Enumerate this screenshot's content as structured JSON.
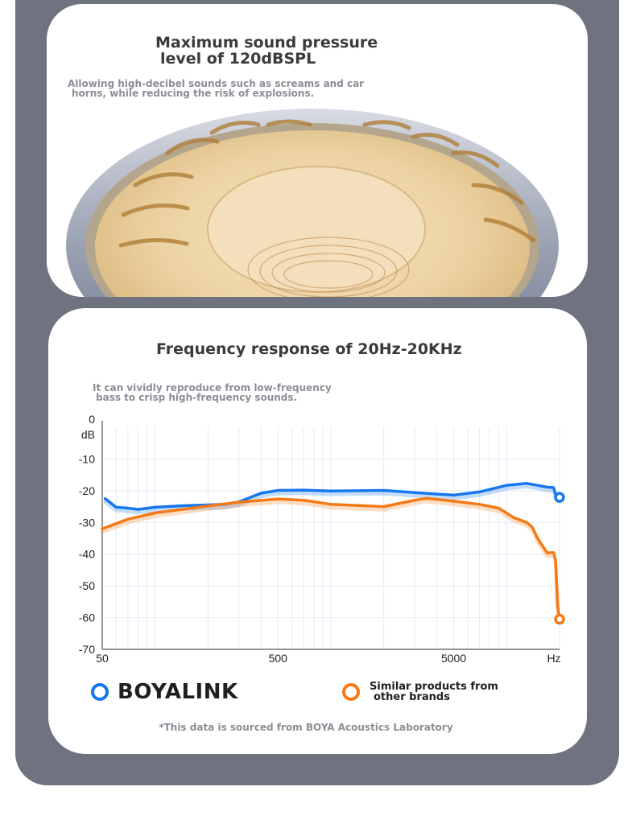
{
  "panel1": {
    "title_line1": "Maximum sound pressure",
    "title_line2": "level of 120dBSPL",
    "subtitle_line1": "Allowing high-decibel sounds such as screams and car",
    "subtitle_line2": "horns, while reducing the risk of explosions."
  },
  "panel2": {
    "title": "Frequency response of 20Hz-20KHz",
    "subtitle_line1": "It can vividly reproduce from low-frequency",
    "subtitle_line2": "bass to crisp high-frequency sounds.",
    "footnote": "*This data is sourced from BOYA Acoustics Laboratory"
  },
  "colors": {
    "frame": "#6f737f",
    "boyalink": "#1677ee",
    "other": "#f47a16"
  },
  "chart_data": {
    "type": "line",
    "title": "",
    "xlabel": "Hz",
    "ylabel": "dB",
    "x_scale": "log",
    "xlim": [
      50,
      20000
    ],
    "ylim": [
      -70,
      0
    ],
    "x_ticks": [
      {
        "value": 50,
        "label": "50"
      },
      {
        "value": 500,
        "label": "500"
      },
      {
        "value": 5000,
        "label": "5000"
      }
    ],
    "y_ticks": [
      {
        "value": 0,
        "label": "0"
      },
      {
        "value": -10,
        "label": "-10"
      },
      {
        "value": -20,
        "label": "-20"
      },
      {
        "value": -30,
        "label": "-30"
      },
      {
        "value": -40,
        "label": "-40"
      },
      {
        "value": -50,
        "label": "-50"
      },
      {
        "value": -60,
        "label": "-60"
      },
      {
        "value": -70,
        "label": "-70"
      }
    ],
    "grid": true,
    "series": [
      {
        "name": "BOYALINK",
        "points": [
          [
            52,
            -22.5
          ],
          [
            60,
            -25.2
          ],
          [
            70,
            -25.5
          ],
          [
            80,
            -25.9
          ],
          [
            100,
            -25.2
          ],
          [
            150,
            -24.7
          ],
          [
            250,
            -24.3
          ],
          [
            300,
            -23.5
          ],
          [
            400,
            -20.8
          ],
          [
            500,
            -19.9
          ],
          [
            700,
            -19.8
          ],
          [
            1000,
            -20.1
          ],
          [
            2000,
            -19.9
          ],
          [
            3000,
            -20.6
          ],
          [
            5000,
            -21.4
          ],
          [
            7000,
            -20.4
          ],
          [
            10000,
            -18.3
          ],
          [
            13000,
            -17.7
          ],
          [
            15000,
            -18.3
          ],
          [
            17000,
            -18.9
          ],
          [
            18500,
            -19.0
          ],
          [
            19000,
            -21.2
          ],
          [
            20000,
            -22.1
          ]
        ]
      },
      {
        "name": "Similar products from other brands",
        "points": [
          [
            50,
            -32.0
          ],
          [
            70,
            -29.0
          ],
          [
            100,
            -27.0
          ],
          [
            200,
            -24.8
          ],
          [
            300,
            -23.6
          ],
          [
            500,
            -22.6
          ],
          [
            700,
            -23.0
          ],
          [
            1000,
            -24.3
          ],
          [
            2000,
            -25.0
          ],
          [
            3000,
            -23.0
          ],
          [
            3500,
            -22.4
          ],
          [
            5000,
            -23.3
          ],
          [
            7000,
            -24.3
          ],
          [
            9000,
            -25.5
          ],
          [
            11000,
            -28.5
          ],
          [
            13000,
            -30.0
          ],
          [
            14000,
            -31.5
          ],
          [
            15000,
            -35.0
          ],
          [
            17000,
            -39.6
          ],
          [
            18500,
            -39.5
          ],
          [
            19000,
            -42.0
          ],
          [
            19500,
            -56.0
          ],
          [
            20000,
            -60.5
          ]
        ]
      }
    ],
    "legend": {
      "position": "bottom"
    }
  }
}
